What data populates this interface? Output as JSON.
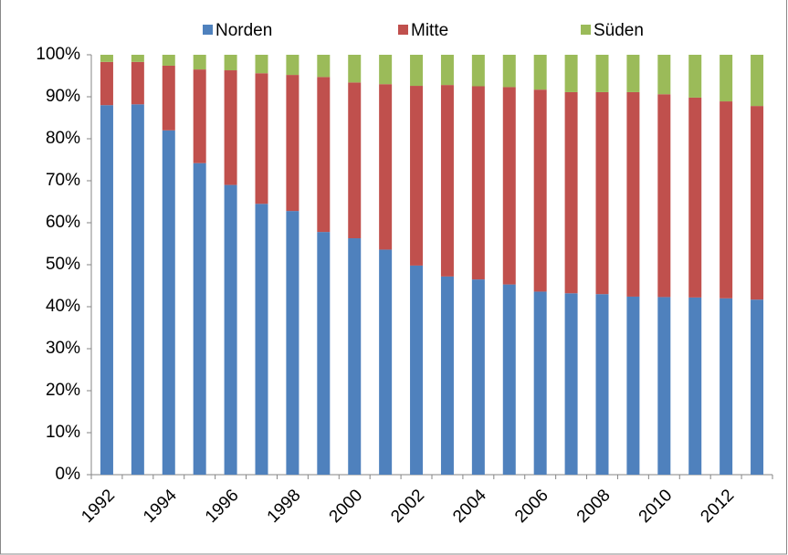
{
  "chart_data": {
    "type": "stacked_bar_100",
    "categories": [
      "1992",
      null,
      "1994",
      null,
      "1996",
      null,
      "1998",
      null,
      "2000",
      null,
      "2002",
      null,
      "2004",
      null,
      "2006",
      null,
      "2008",
      null,
      "2010",
      null,
      "2012",
      null
    ],
    "series": [
      {
        "name": "Norden",
        "color": "#4f81bd",
        "values": [
          88,
          88.2,
          82,
          74.2,
          69,
          64.5,
          62.8,
          57.8,
          56.3,
          53.6,
          49.8,
          47.2,
          46.5,
          45.3,
          43.6,
          43.2,
          43,
          42.4,
          42.3,
          42.2,
          42,
          41.7
        ]
      },
      {
        "name": "Mitte",
        "color": "#c0504d",
        "values": [
          10.3,
          10.1,
          15.4,
          22.3,
          27.3,
          31.1,
          32.4,
          36.9,
          37.1,
          39.4,
          42.8,
          45.6,
          46,
          47,
          48.1,
          47.9,
          48.1,
          48.7,
          48.3,
          47.6,
          46.9,
          46.1
        ]
      },
      {
        "name": "Süden",
        "color": "#9bbb59",
        "values": [
          1.7,
          1.7,
          2.6,
          3.5,
          3.7,
          4.4,
          4.8,
          5.3,
          6.6,
          7,
          7.4,
          7.2,
          7.5,
          7.7,
          8.3,
          8.9,
          8.9,
          8.9,
          9.4,
          10.2,
          11.1,
          12.2
        ]
      }
    ],
    "ylim": [
      0,
      100
    ],
    "yticks": [
      {
        "value": 0,
        "label": "0%"
      },
      {
        "value": 10,
        "label": "10%"
      },
      {
        "value": 20,
        "label": "20%"
      },
      {
        "value": 30,
        "label": "30%"
      },
      {
        "value": 40,
        "label": "40%"
      },
      {
        "value": 50,
        "label": "50%"
      },
      {
        "value": 60,
        "label": "60%"
      },
      {
        "value": 70,
        "label": "70%"
      },
      {
        "value": 80,
        "label": "80%"
      },
      {
        "value": 90,
        "label": "90%"
      },
      {
        "value": 100,
        "label": "100%"
      }
    ],
    "grid": false,
    "legend": "top"
  }
}
